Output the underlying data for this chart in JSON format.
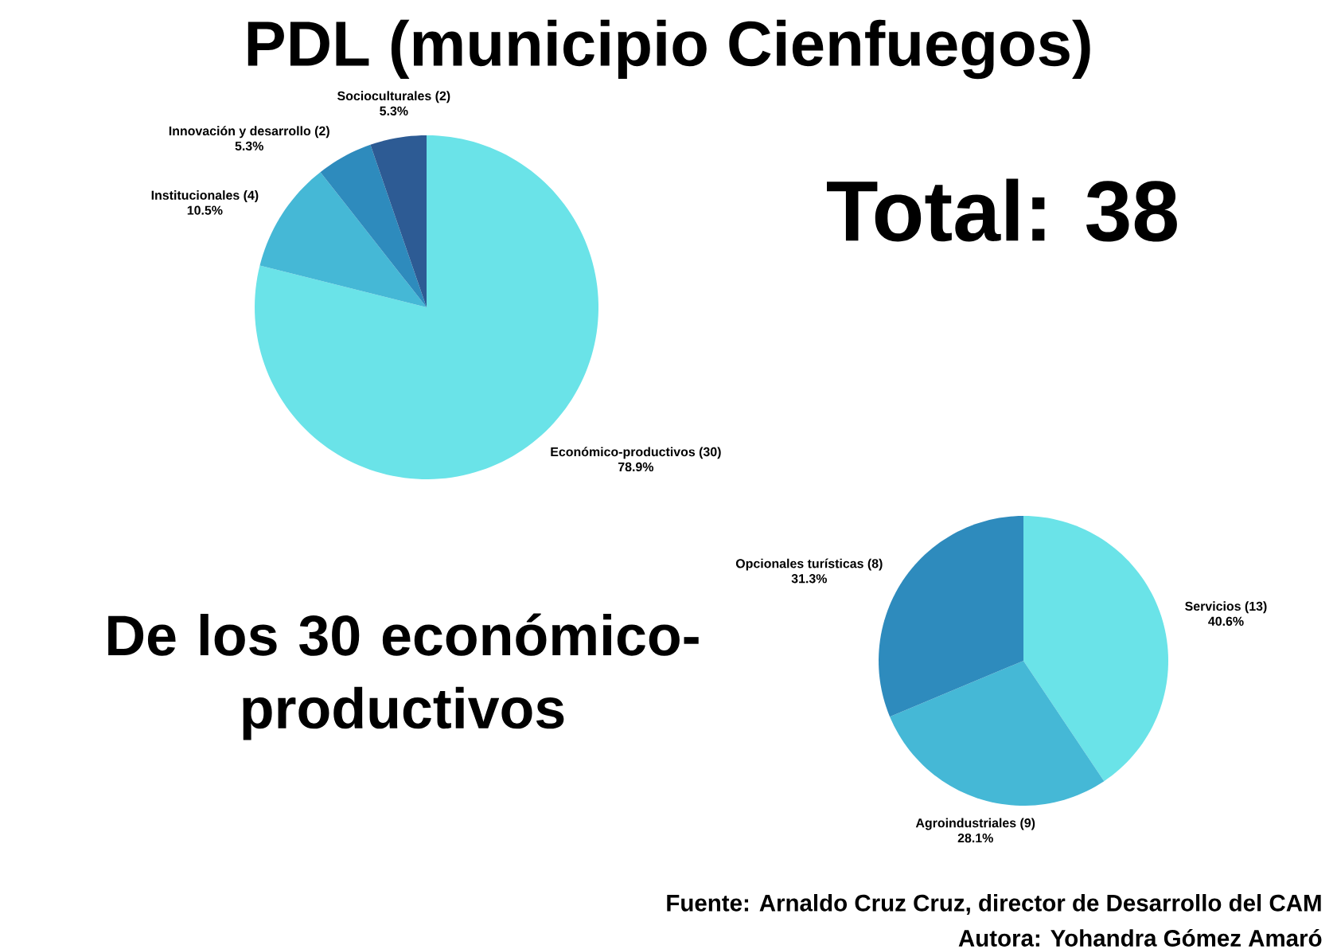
{
  "chart_data": [
    {
      "type": "pie",
      "title": "PDL (municipio Cienfuegos)",
      "categories": [
        "Económico-productivos (30)",
        "Institucionales (4)",
        "Innovación y desarrollo (2)",
        "Socioculturales (2)"
      ],
      "values": [
        78.9,
        10.5,
        5.3,
        5.3
      ],
      "value_labels": [
        "78.9%",
        "10.5%",
        "5.3%",
        "5.3%"
      ],
      "colors": [
        "#6ae3e8",
        "#45b8d6",
        "#2e8bbd",
        "#2d5b94"
      ],
      "annotations": [
        "Total: 38"
      ]
    },
    {
      "type": "pie",
      "title": "De los 30 económico-productivos",
      "categories": [
        "Servicios (13)",
        "Agroindustriales (9)",
        "Opcionales turísticas (8)"
      ],
      "values": [
        40.6,
        28.1,
        31.3
      ],
      "value_labels": [
        "40.6%",
        "28.1%",
        "31.3%"
      ],
      "colors": [
        "#6ae3e8",
        "#45b8d6",
        "#2e8bbd"
      ],
      "annotations": [
        "Fuente: Arnaldo Cruz Cruz, director de Desarrollo del CAM",
        "Autora: Yohandra Gómez Amaró"
      ]
    }
  ]
}
